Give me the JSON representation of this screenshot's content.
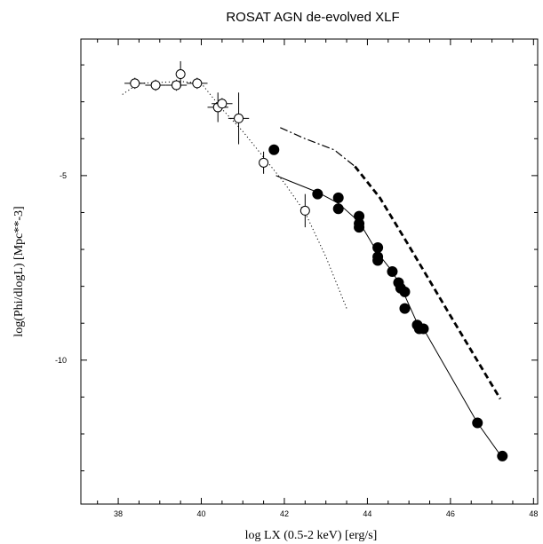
{
  "chart_data": {
    "type": "scatter",
    "title": "ROSAT AGN de-evolved XLF",
    "xlabel": "log LX (0.5-2 keV) [erg/s]",
    "ylabel": "log(Phi/dlogL) [Mpc**-3]",
    "xlim": [
      37.1,
      48.1
    ],
    "ylim": [
      -13.9,
      -1.3
    ],
    "xticks": [
      38,
      40,
      42,
      44,
      46,
      48
    ],
    "yticks": [
      -5,
      -10
    ],
    "grid": false,
    "series": [
      {
        "marker": "open-circle",
        "points": [
          {
            "x": 38.4,
            "y": -2.5,
            "xerr": 0.25,
            "yerr": 0.15
          },
          {
            "x": 38.9,
            "y": -2.55,
            "xerr": 0.25,
            "yerr": 0.15
          },
          {
            "x": 39.4,
            "y": -2.55,
            "xerr": 0.25,
            "yerr": 0.15
          },
          {
            "x": 39.5,
            "y": -2.25,
            "xerr": 0.0,
            "yerr": 0.35
          },
          {
            "x": 39.9,
            "y": -2.5,
            "xerr": 0.25,
            "yerr": 0.15
          },
          {
            "x": 40.4,
            "y": -3.15,
            "xerr": 0.25,
            "yerr": 0.4
          },
          {
            "x": 40.5,
            "y": -3.05,
            "xerr": 0.25,
            "yerr": 0.15
          },
          {
            "x": 40.9,
            "y": -3.45,
            "xerr": 0.25,
            "yerr": 0.7
          },
          {
            "x": 41.5,
            "y": -4.65,
            "xerr": 0.0,
            "yerr": 0.3
          },
          {
            "x": 42.5,
            "y": -5.95,
            "xerr": 0.0,
            "yerr": 0.45
          }
        ]
      },
      {
        "marker": "filled-circle",
        "points": [
          {
            "x": 41.75,
            "y": -4.3
          },
          {
            "x": 42.8,
            "y": -5.5
          },
          {
            "x": 43.3,
            "y": -5.6
          },
          {
            "x": 43.3,
            "y": -5.9
          },
          {
            "x": 43.8,
            "y": -6.1
          },
          {
            "x": 43.8,
            "y": -6.3
          },
          {
            "x": 43.8,
            "y": -6.4
          },
          {
            "x": 44.25,
            "y": -6.95
          },
          {
            "x": 44.25,
            "y": -7.2
          },
          {
            "x": 44.25,
            "y": -7.3
          },
          {
            "x": 44.6,
            "y": -7.6
          },
          {
            "x": 44.75,
            "y": -7.9
          },
          {
            "x": 44.8,
            "y": -8.05
          },
          {
            "x": 44.9,
            "y": -8.15
          },
          {
            "x": 44.9,
            "y": -8.6
          },
          {
            "x": 45.2,
            "y": -9.05
          },
          {
            "x": 45.25,
            "y": -9.15
          },
          {
            "x": 45.35,
            "y": -9.15
          },
          {
            "x": 46.65,
            "y": -11.7
          },
          {
            "x": 47.25,
            "y": -12.6
          }
        ]
      }
    ],
    "lines": [
      {
        "style": "dotted",
        "points": [
          [
            38.1,
            -2.8
          ],
          [
            38.5,
            -2.5
          ],
          [
            39.5,
            -2.45
          ],
          [
            40.0,
            -2.5
          ],
          [
            40.5,
            -3.2
          ],
          [
            41.0,
            -3.8
          ],
          [
            41.5,
            -4.5
          ],
          [
            42.0,
            -5.2
          ],
          [
            42.5,
            -6.0
          ],
          [
            43.0,
            -7.2
          ],
          [
            43.5,
            -8.6
          ]
        ]
      },
      {
        "style": "solid",
        "points": [
          [
            41.8,
            -5.0
          ],
          [
            42.8,
            -5.45
          ],
          [
            43.3,
            -5.75
          ],
          [
            43.8,
            -6.25
          ],
          [
            44.25,
            -7.1
          ],
          [
            44.6,
            -7.6
          ],
          [
            44.8,
            -8.0
          ],
          [
            45.2,
            -9.0
          ],
          [
            45.35,
            -9.15
          ],
          [
            46.65,
            -11.7
          ],
          [
            47.25,
            -12.65
          ]
        ]
      },
      {
        "style": "dash-dot",
        "points": [
          [
            41.9,
            -3.7
          ],
          [
            42.5,
            -4.0
          ],
          [
            43.2,
            -4.3
          ],
          [
            43.7,
            -4.75
          ]
        ]
      },
      {
        "style": "dashed-thick",
        "points": [
          [
            43.7,
            -4.75
          ],
          [
            44.3,
            -5.6
          ],
          [
            45.0,
            -6.9
          ],
          [
            46.0,
            -8.8
          ],
          [
            47.2,
            -11.05
          ]
        ]
      }
    ]
  }
}
